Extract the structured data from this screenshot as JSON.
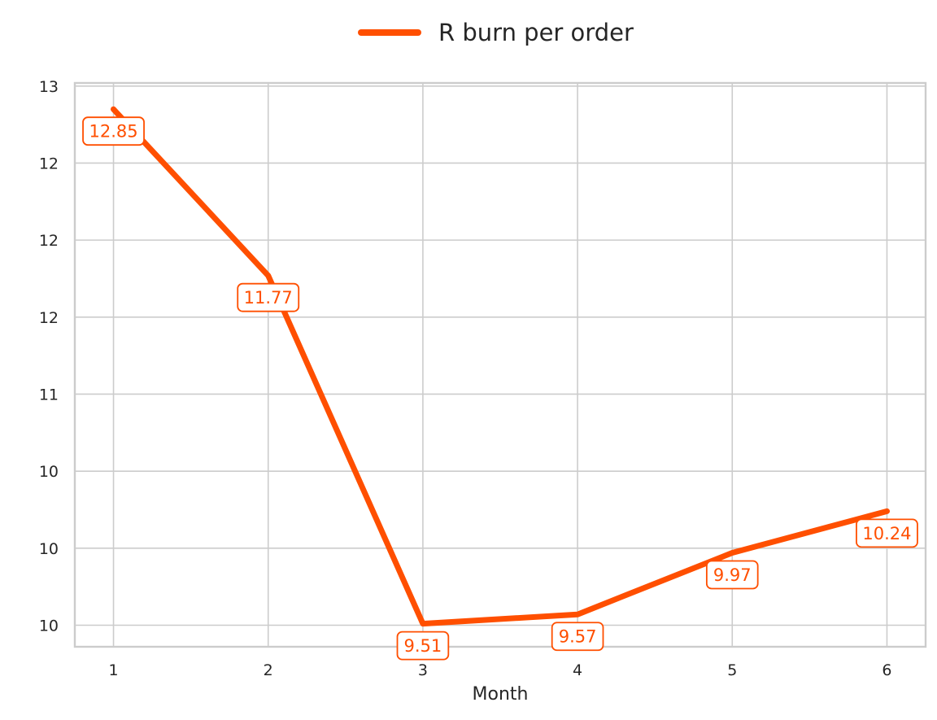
{
  "chart_data": {
    "type": "line",
    "x": [
      1,
      2,
      3,
      4,
      5,
      6
    ],
    "series": [
      {
        "name": "R burn per order",
        "values": [
          12.85,
          11.77,
          9.51,
          9.57,
          9.97,
          10.24
        ],
        "labels": [
          "12.85",
          "11.77",
          "9.51",
          "9.57",
          "9.97",
          "10.24"
        ],
        "color": "#ff4f00"
      }
    ],
    "xlabel": "Month",
    "ylabel": "",
    "title": "",
    "xlim": [
      0.75,
      6.25
    ],
    "ylim": [
      9.36,
      13.02
    ],
    "xticks": [
      1,
      2,
      3,
      4,
      5,
      6
    ],
    "xtick_labels": [
      "1",
      "2",
      "3",
      "4",
      "5",
      "6"
    ],
    "yticks": [
      9.5,
      10.0,
      10.5,
      11.0,
      11.5,
      12.0,
      12.5,
      13.0
    ],
    "ytick_labels": [
      "10",
      "10",
      "10",
      "11",
      "12",
      "12",
      "12",
      "13"
    ],
    "grid": true,
    "legend_position": "top-center"
  }
}
